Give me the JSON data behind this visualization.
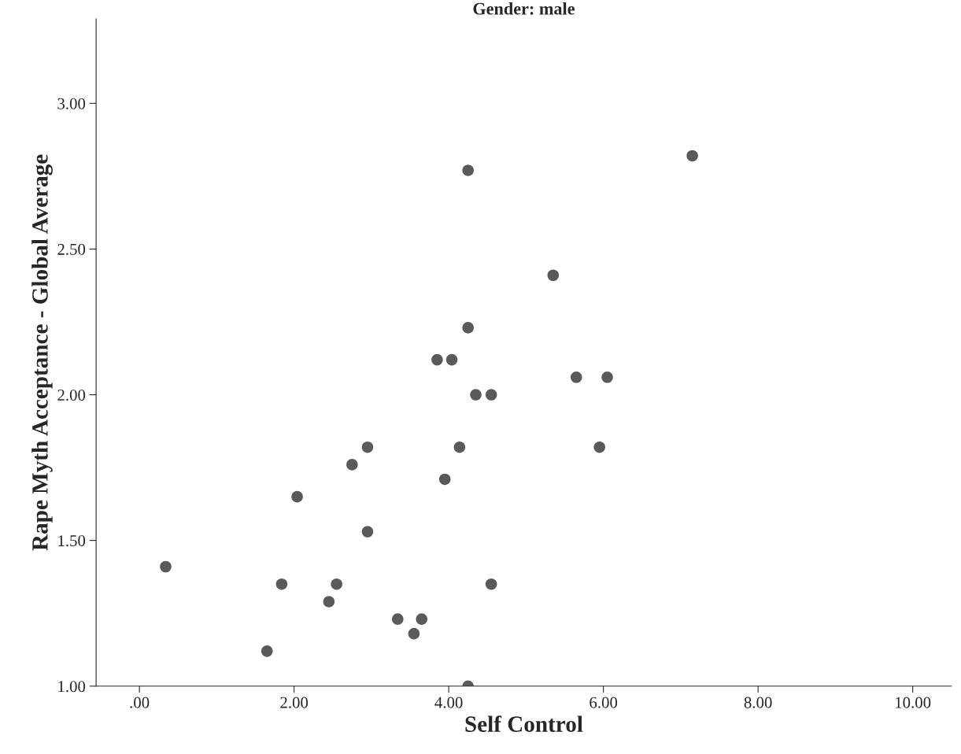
{
  "chart_data": {
    "type": "scatter",
    "title": "Gender: male",
    "xlabel": "Self Control",
    "ylabel": "Rape Myth Acceptance - Global Average",
    "x": [
      0.34,
      1.65,
      1.84,
      2.04,
      2.45,
      2.55,
      2.75,
      2.95,
      2.95,
      3.34,
      3.55,
      3.65,
      3.85,
      3.95,
      4.04,
      4.14,
      4.25,
      4.25,
      4.25,
      4.35,
      4.55,
      4.55,
      5.35,
      5.65,
      5.95,
      6.05,
      7.15
    ],
    "series": [
      {
        "color": "#5a5a5a",
        "values": [
          1.41,
          1.12,
          1.35,
          1.65,
          1.29,
          1.35,
          1.76,
          1.82,
          1.53,
          1.23,
          1.18,
          1.23,
          2.12,
          1.71,
          2.12,
          1.82,
          2.77,
          2.23,
          1.0,
          2.0,
          2.0,
          1.35,
          2.41,
          2.06,
          1.82,
          2.06,
          2.82
        ]
      }
    ],
    "xlim": [
      -0.56,
      10.5
    ],
    "ylim": [
      1.0,
      3.29
    ],
    "xticks": [
      {
        "value": 0,
        "label": ".00"
      },
      {
        "value": 2,
        "label": "2.00"
      },
      {
        "value": 4,
        "label": "4.00"
      },
      {
        "value": 6,
        "label": "6.00"
      },
      {
        "value": 8,
        "label": "8.00"
      },
      {
        "value": 10,
        "label": "10.00"
      }
    ],
    "yticks": [
      {
        "value": 1,
        "label": "1.00"
      },
      {
        "value": 1.5,
        "label": "1.50"
      },
      {
        "value": 2,
        "label": "2.00"
      },
      {
        "value": 2.5,
        "label": "2.50"
      },
      {
        "value": 3,
        "label": "3.00"
      }
    ],
    "marker": "circle",
    "grid": false
  }
}
